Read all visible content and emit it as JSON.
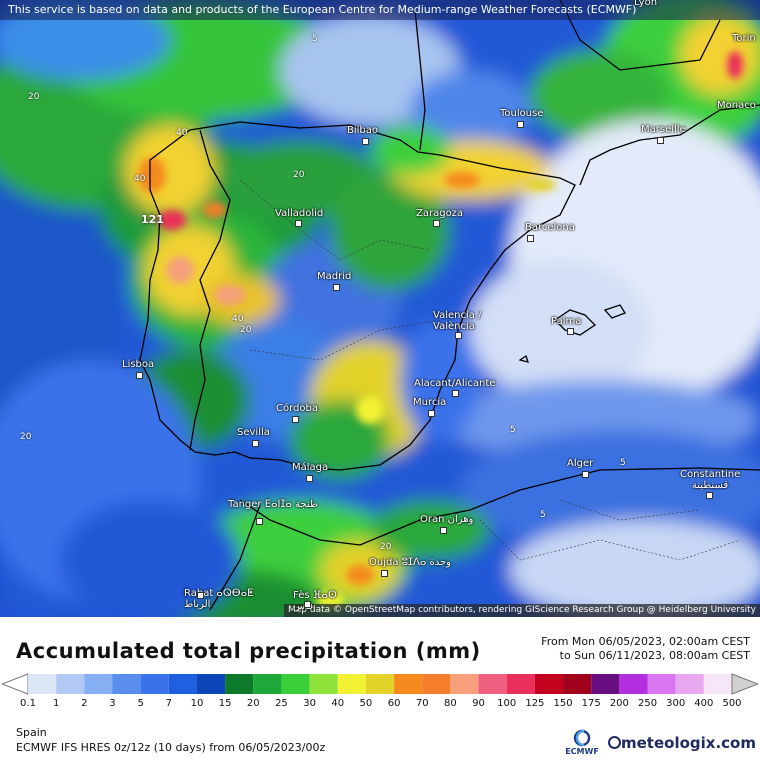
{
  "notice": "This service is based on data and products of the European Centre for Medium-range Weather Forecasts (ECMWF)",
  "attribution": "Map data © OpenStreetMap contributors, rendering GIScience Research Group @ Heidelberg University",
  "title": "Accumulated total precipitation (mm)",
  "period": {
    "from": "From Mon 06/05/2023, 02:00am CEST",
    "to": "to Sun 06/11/2023, 08:00am CEST"
  },
  "legend": {
    "ticks": [
      "0.1",
      "1",
      "2",
      "3",
      "5",
      "7",
      "10",
      "15",
      "20",
      "25",
      "30",
      "40",
      "50",
      "60",
      "70",
      "80",
      "90",
      "100",
      "125",
      "150",
      "175",
      "200",
      "250",
      "300",
      "400",
      "500"
    ],
    "colors": [
      "#dde6f7",
      "#b3c8f4",
      "#86aef2",
      "#5a8eee",
      "#3a72ea",
      "#1f5fe0",
      "#0d46b8",
      "#0d7a2a",
      "#1fa83a",
      "#3ccf3c",
      "#8fe23a",
      "#f2f233",
      "#e2d22a",
      "#f58a1f",
      "#f57e2c",
      "#f5a07a",
      "#ef5f7f",
      "#ea2f5a",
      "#c4001f",
      "#a0001c",
      "#6a0f82",
      "#b22fe0",
      "#d975ee",
      "#e8a8f0",
      "#f5e6fa",
      "#d0d0d0"
    ]
  },
  "region": "Spain",
  "model": "ECMWF IFS HRES 0z/12z (10 days) from 06/05/2023/00z",
  "logo_text": "ECMWF",
  "brand": "meteologix.com",
  "max_label": "121",
  "cities": [
    {
      "name": "Lyon"
    },
    {
      "name": "Torin"
    },
    {
      "name": "Monaco"
    },
    {
      "name": "Toulouse"
    },
    {
      "name": "Marseille"
    },
    {
      "name": "Bilbao"
    },
    {
      "name": "Zaragoza"
    },
    {
      "name": "Barcelona"
    },
    {
      "name": "Valladolid"
    },
    {
      "name": "Madrid"
    },
    {
      "name": "Valencia / València"
    },
    {
      "name": "Palma"
    },
    {
      "name": "Lisboa"
    },
    {
      "name": "Alacant/Alicante"
    },
    {
      "name": "Murcia"
    },
    {
      "name": "Córdoba"
    },
    {
      "name": "Sevilla"
    },
    {
      "name": "Málaga"
    },
    {
      "name": "Alger"
    },
    {
      "name": "Constantine قسنطينة"
    },
    {
      "name": "Tanger ⴹⴰⵏⵊⴰ طنجة"
    },
    {
      "name": "Oran وهران"
    },
    {
      "name": "Oujda ⵓⵊⴷⴰ وجدة"
    },
    {
      "name": "Rabat ⴰⵕⴱⴰⵟ الرباط"
    },
    {
      "name": "Fès ⴼⴰⵙ فاس"
    }
  ],
  "contour_labels": [
    "5",
    "20",
    "40"
  ]
}
